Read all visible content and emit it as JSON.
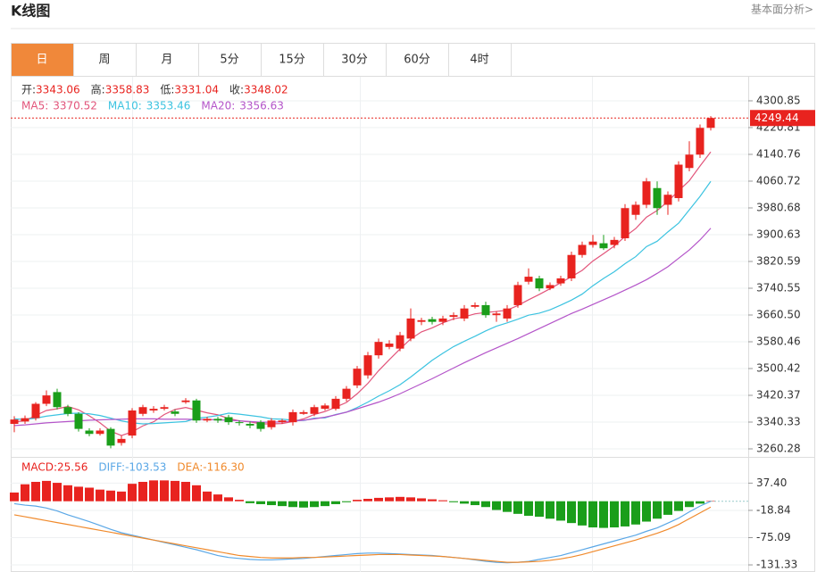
{
  "header": {
    "title": "K线图",
    "link": "基本面分析>"
  },
  "tabs": [
    "日",
    "周",
    "月",
    "5分",
    "15分",
    "30分",
    "60分",
    "4时"
  ],
  "active_tab": 0,
  "chart_data": [
    {
      "type": "candlestick",
      "info": [
        {
          "label": "开:",
          "value": "3343.06"
        },
        {
          "label": "高:",
          "value": "3358.83"
        },
        {
          "label": "低:",
          "value": "3331.04"
        },
        {
          "label": "收:",
          "value": "3348.02"
        }
      ],
      "up_color": "#e8231f",
      "down_color": "#1a9e1a",
      "open": [
        3335,
        3342,
        3352,
        3395,
        3430,
        3385,
        3365,
        3315,
        3305,
        3320,
        3278,
        3300,
        3365,
        3375,
        3380,
        3372,
        3400,
        3405,
        3345,
        3350,
        3355,
        3340,
        3335,
        3340,
        3325,
        3340,
        3340,
        3365,
        3365,
        3380,
        3380,
        3410,
        3450,
        3480,
        3540,
        3565,
        3560,
        3590,
        3640,
        3648,
        3640,
        3655,
        3650,
        3685,
        3690,
        3660,
        3650,
        3690,
        3760,
        3770,
        3740,
        3755,
        3770,
        3840,
        3870,
        3875,
        3870,
        3890,
        3960,
        3990,
        4040,
        3990,
        4010,
        4100,
        4140,
        4220
      ],
      "high": [
        3358,
        3360,
        3400,
        3435,
        3440,
        3392,
        3370,
        3322,
        3322,
        3325,
        3300,
        3382,
        3392,
        3388,
        3392,
        3378,
        3412,
        3410,
        3356,
        3356,
        3362,
        3346,
        3342,
        3346,
        3352,
        3350,
        3378,
        3376,
        3392,
        3396,
        3418,
        3448,
        3508,
        3550,
        3590,
        3585,
        3610,
        3680,
        3652,
        3655,
        3658,
        3668,
        3690,
        3698,
        3700,
        3672,
        3690,
        3760,
        3800,
        3778,
        3758,
        3778,
        3850,
        3880,
        3900,
        3900,
        3894,
        3992,
        4000,
        4070,
        4060,
        4030,
        4120,
        4180,
        4230,
        4255
      ],
      "low": [
        3310,
        3335,
        3345,
        3388,
        3378,
        3358,
        3312,
        3298,
        3300,
        3262,
        3270,
        3292,
        3358,
        3368,
        3375,
        3358,
        3395,
        3338,
        3340,
        3338,
        3332,
        3330,
        3322,
        3312,
        3318,
        3335,
        3330,
        3362,
        3358,
        3375,
        3375,
        3402,
        3442,
        3470,
        3530,
        3558,
        3552,
        3582,
        3630,
        3632,
        3630,
        3645,
        3642,
        3680,
        3652,
        3640,
        3640,
        3682,
        3752,
        3732,
        3735,
        3748,
        3762,
        3832,
        3862,
        3855,
        3860,
        3882,
        3945,
        3980,
        3960,
        3960,
        4000,
        4090,
        4130,
        4212
      ],
      "close": [
        3348,
        3352,
        3395,
        3420,
        3385,
        3365,
        3320,
        3305,
        3315,
        3270,
        3290,
        3375,
        3385,
        3380,
        3385,
        3365,
        3405,
        3345,
        3350,
        3345,
        3340,
        3338,
        3330,
        3320,
        3345,
        3345,
        3370,
        3370,
        3385,
        3390,
        3410,
        3440,
        3500,
        3540,
        3580,
        3575,
        3600,
        3650,
        3645,
        3640,
        3650,
        3660,
        3680,
        3690,
        3660,
        3665,
        3680,
        3750,
        3775,
        3740,
        3750,
        3770,
        3840,
        3870,
        3880,
        3860,
        3885,
        3980,
        3990,
        4060,
        3980,
        4020,
        4110,
        4140,
        4220,
        4249.44
      ],
      "series": [
        {
          "name": "MA5:",
          "legend_value": "3370.52",
          "color": "#e2557b",
          "values": [
            3340,
            3345,
            3360,
            3375,
            3380,
            3387,
            3377,
            3359,
            3338,
            3313,
            3300,
            3311,
            3329,
            3341,
            3363,
            3378,
            3384,
            3376,
            3368,
            3362,
            3351,
            3344,
            3341,
            3335,
            3335,
            3336,
            3342,
            3350,
            3363,
            3372,
            3385,
            3399,
            3425,
            3456,
            3494,
            3527,
            3559,
            3589,
            3610,
            3622,
            3637,
            3649,
            3655,
            3664,
            3668,
            3671,
            3675,
            3689,
            3706,
            3722,
            3739,
            3757,
            3775,
            3794,
            3822,
            3844,
            3867,
            3895,
            3919,
            3953,
            3973,
            4000,
            4032,
            4062,
            4106,
            4148
          ]
        },
        {
          "name": "MA10:",
          "legend_value": "3353.46",
          "color": "#3cc3e0",
          "values": [
            3350,
            3348,
            3352,
            3358,
            3362,
            3366,
            3367,
            3365,
            3360,
            3352,
            3344,
            3338,
            3335,
            3336,
            3338,
            3340,
            3342,
            3352,
            3355,
            3360,
            3367,
            3364,
            3360,
            3356,
            3350,
            3349,
            3346,
            3345,
            3352,
            3353,
            3363,
            3370,
            3384,
            3400,
            3418,
            3434,
            3452,
            3475,
            3500,
            3525,
            3546,
            3566,
            3582,
            3597,
            3613,
            3627,
            3637,
            3648,
            3660,
            3666,
            3676,
            3690,
            3705,
            3723,
            3748,
            3770,
            3790,
            3814,
            3835,
            3865,
            3881,
            3909,
            3935,
            3975,
            4015,
            4060
          ]
        },
        {
          "name": "MA20:",
          "legend_value": "3356.63",
          "color": "#b455c9",
          "values": [
            3330,
            3332,
            3335,
            3338,
            3340,
            3342,
            3344,
            3346,
            3347,
            3348,
            3349,
            3350,
            3350,
            3350,
            3349,
            3349,
            3349,
            3348,
            3348,
            3347,
            3346,
            3344,
            3342,
            3340,
            3340,
            3341,
            3343,
            3346,
            3350,
            3355,
            3362,
            3370,
            3380,
            3390,
            3400,
            3412,
            3425,
            3440,
            3455,
            3470,
            3486,
            3502,
            3518,
            3533,
            3548,
            3562,
            3576,
            3590,
            3605,
            3620,
            3635,
            3650,
            3665,
            3678,
            3692,
            3706,
            3720,
            3735,
            3750,
            3766,
            3785,
            3805,
            3830,
            3855,
            3885,
            3920
          ]
        }
      ],
      "last_price": 4249.44,
      "last_price_color": "#e8231f",
      "ylim": [
        3241.6,
        4367.5
      ],
      "yticks": [
        4300.85,
        4220.81,
        4140.76,
        4060.72,
        3980.68,
        3900.63,
        3820.59,
        3740.55,
        {
          "value": 3660.5,
          "label": "3660.50"
        },
        3580.46,
        3500.42,
        3420.37,
        3340.33,
        3260.28
      ],
      "grid": true
    },
    {
      "type": "macd",
      "series": [
        {
          "name": "MACD:",
          "legend_value": "25.56",
          "color": "#e8231f",
          "down_color": "#1a9e1a",
          "kind": "bar",
          "values": [
            18,
            35,
            40,
            42,
            38,
            33,
            30,
            28,
            24,
            22,
            20,
            36,
            40,
            43,
            43,
            42,
            40,
            33,
            20,
            14,
            8,
            3,
            -4,
            -6,
            -8,
            -10,
            -12,
            -13,
            -12,
            -10,
            -6,
            -2,
            3,
            5,
            7,
            8,
            9,
            8,
            6,
            4,
            2,
            -2,
            -5,
            -8,
            -12,
            -18,
            -22,
            -26,
            -30,
            -32,
            -36,
            -40,
            -45,
            -50,
            -54,
            -55,
            -54,
            -52,
            -48,
            -42,
            -36,
            -28,
            -20,
            -12,
            -5,
            1
          ]
        },
        {
          "name": "DIFF:",
          "legend_value": "-103.53",
          "color": "#5aa7e6",
          "kind": "line",
          "values": [
            -5,
            -8,
            -10,
            -14,
            -20,
            -28,
            -35,
            -42,
            -50,
            -58,
            -65,
            -70,
            -75,
            -80,
            -85,
            -90,
            -95,
            -100,
            -106,
            -112,
            -116,
            -118,
            -120,
            -121,
            -121,
            -120,
            -119,
            -118,
            -116,
            -114,
            -112,
            -110,
            -108,
            -107,
            -107,
            -108,
            -109,
            -110,
            -111,
            -112,
            -114,
            -116,
            -118,
            -121,
            -124,
            -126,
            -127,
            -126,
            -124,
            -120,
            -116,
            -112,
            -106,
            -100,
            -94,
            -88,
            -82,
            -76,
            -70,
            -62,
            -55,
            -45,
            -35,
            -22,
            -10,
            0
          ]
        },
        {
          "name": "DEA:",
          "legend_value": "-116.30",
          "color": "#f08a2c",
          "kind": "line",
          "values": [
            -28,
            -32,
            -36,
            -40,
            -44,
            -48,
            -52,
            -56,
            -60,
            -64,
            -68,
            -72,
            -76,
            -80,
            -84,
            -88,
            -92,
            -96,
            -100,
            -104,
            -108,
            -112,
            -114,
            -116,
            -117,
            -117,
            -117,
            -116,
            -116,
            -115,
            -114,
            -113,
            -112,
            -111,
            -110,
            -110,
            -110,
            -111,
            -112,
            -113,
            -114,
            -116,
            -118,
            -120,
            -122,
            -124,
            -126,
            -126,
            -125,
            -124,
            -122,
            -119,
            -115,
            -110,
            -104,
            -98,
            -92,
            -86,
            -80,
            -73,
            -66,
            -58,
            -48,
            -36,
            -24,
            -12
          ]
        }
      ],
      "ylim": [
        -146,
        86
      ],
      "yticks": [
        {
          "value": 37.4,
          "label": "37.40"
        },
        -18.84,
        -75.09,
        -131.33
      ],
      "grid": true
    }
  ]
}
